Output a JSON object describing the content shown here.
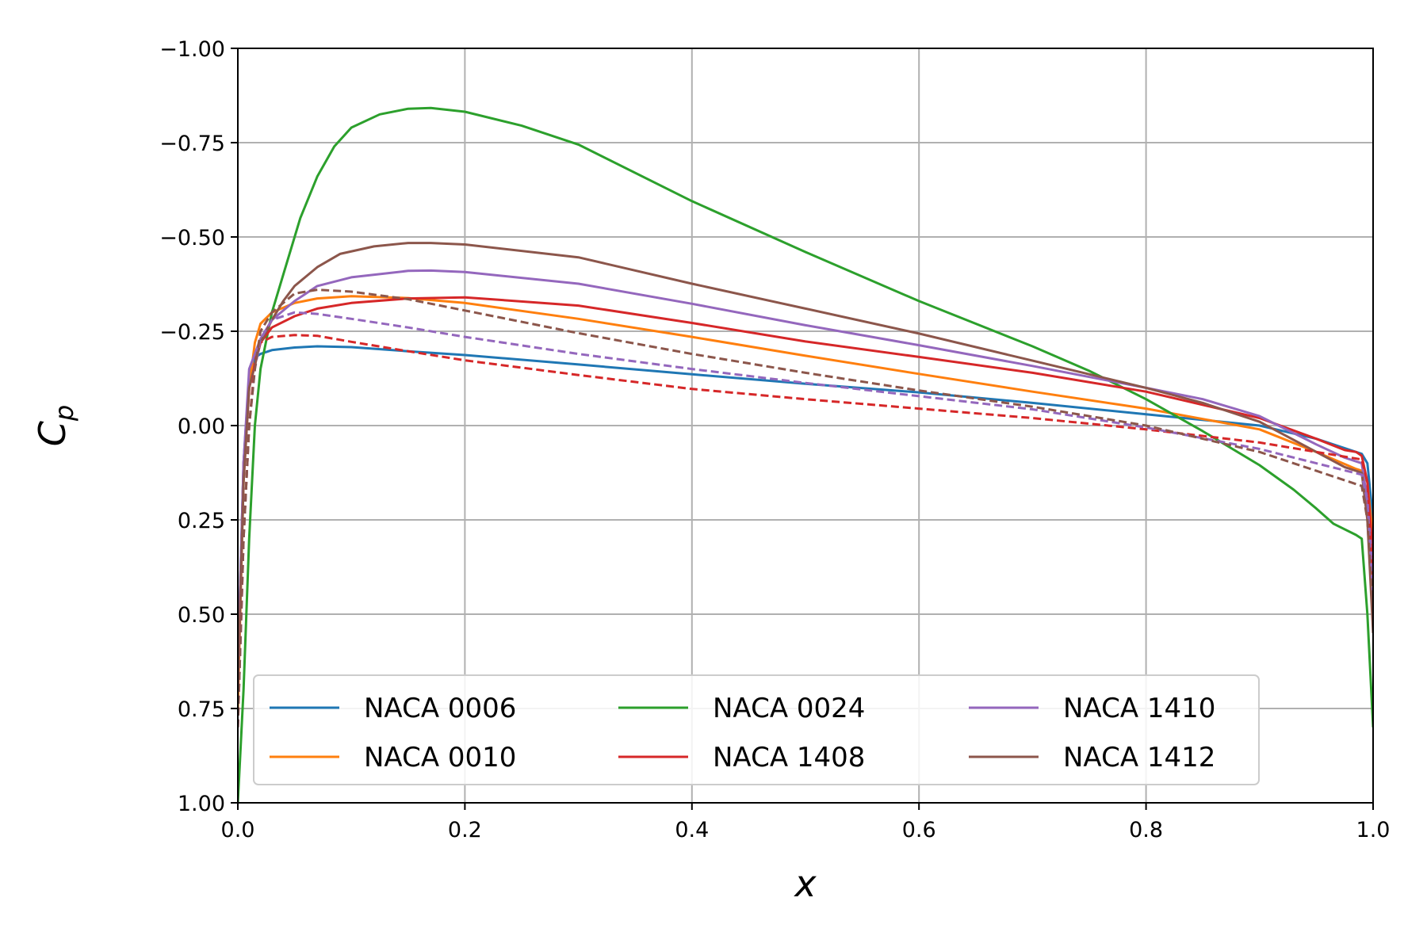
{
  "chart_data": {
    "type": "line",
    "xlabel": "x",
    "ylabel": "C",
    "ylabel_sub": "p",
    "xlim": [
      0.0,
      1.0
    ],
    "ylim": [
      1.0,
      -1.0
    ],
    "y_inverted": true,
    "grid": true,
    "legend_position": "lower-center",
    "legend_columns": 3,
    "xticks": [
      "0.0",
      "0.2",
      "0.4",
      "0.6",
      "0.8",
      "1.0"
    ],
    "yticks": [
      "−1.00",
      "−0.75",
      "−0.50",
      "−0.25",
      "0.00",
      "0.25",
      "0.50",
      "0.75",
      "1.00"
    ],
    "series": [
      {
        "name": "NACA 0006",
        "color": "#1f77b4",
        "style": "solid",
        "points": [
          [
            0.0,
            0.65
          ],
          [
            0.005,
            0.1
          ],
          [
            0.01,
            -0.13
          ],
          [
            0.015,
            -0.18
          ],
          [
            0.02,
            -0.19
          ],
          [
            0.03,
            -0.2
          ],
          [
            0.05,
            -0.207
          ],
          [
            0.07,
            -0.21
          ],
          [
            0.1,
            -0.208
          ],
          [
            0.15,
            -0.197
          ],
          [
            0.2,
            -0.187
          ],
          [
            0.3,
            -0.162
          ],
          [
            0.4,
            -0.136
          ],
          [
            0.5,
            -0.111
          ],
          [
            0.6,
            -0.088
          ],
          [
            0.7,
            -0.06
          ],
          [
            0.8,
            -0.03
          ],
          [
            0.9,
            0.0
          ],
          [
            0.95,
            0.035
          ],
          [
            0.985,
            0.07
          ],
          [
            0.99,
            0.075
          ],
          [
            0.995,
            0.1
          ],
          [
            1.0,
            0.25
          ]
        ]
      },
      {
        "name": "NACA 0010",
        "color": "#ff7f0e",
        "style": "solid",
        "points": [
          [
            0.0,
            0.75
          ],
          [
            0.005,
            0.15
          ],
          [
            0.01,
            -0.1
          ],
          [
            0.015,
            -0.22
          ],
          [
            0.02,
            -0.27
          ],
          [
            0.03,
            -0.3
          ],
          [
            0.05,
            -0.325
          ],
          [
            0.07,
            -0.337
          ],
          [
            0.1,
            -0.343
          ],
          [
            0.15,
            -0.338
          ],
          [
            0.2,
            -0.325
          ],
          [
            0.3,
            -0.283
          ],
          [
            0.4,
            -0.235
          ],
          [
            0.5,
            -0.185
          ],
          [
            0.6,
            -0.137
          ],
          [
            0.7,
            -0.09
          ],
          [
            0.8,
            -0.045
          ],
          [
            0.9,
            0.01
          ],
          [
            0.95,
            0.07
          ],
          [
            0.985,
            0.115
          ],
          [
            0.99,
            0.12
          ],
          [
            0.995,
            0.15
          ],
          [
            1.0,
            0.3
          ]
        ]
      },
      {
        "name": "NACA 0024",
        "color": "#2ca02c",
        "style": "solid",
        "points": [
          [
            0.0,
            1.0
          ],
          [
            0.005,
            0.7
          ],
          [
            0.01,
            0.3
          ],
          [
            0.015,
            0.0
          ],
          [
            0.02,
            -0.15
          ],
          [
            0.03,
            -0.3
          ],
          [
            0.04,
            -0.4
          ],
          [
            0.055,
            -0.55
          ],
          [
            0.07,
            -0.66
          ],
          [
            0.085,
            -0.74
          ],
          [
            0.1,
            -0.79
          ],
          [
            0.125,
            -0.825
          ],
          [
            0.15,
            -0.84
          ],
          [
            0.17,
            -0.842
          ],
          [
            0.2,
            -0.832
          ],
          [
            0.25,
            -0.795
          ],
          [
            0.3,
            -0.745
          ],
          [
            0.4,
            -0.595
          ],
          [
            0.5,
            -0.46
          ],
          [
            0.6,
            -0.33
          ],
          [
            0.7,
            -0.21
          ],
          [
            0.75,
            -0.145
          ],
          [
            0.8,
            -0.07
          ],
          [
            0.85,
            0.015
          ],
          [
            0.9,
            0.105
          ],
          [
            0.93,
            0.17
          ],
          [
            0.95,
            0.22
          ],
          [
            0.965,
            0.26
          ],
          [
            0.985,
            0.29
          ],
          [
            0.99,
            0.3
          ],
          [
            0.995,
            0.5
          ],
          [
            1.0,
            0.8
          ]
        ]
      },
      {
        "name": "NACA 1408",
        "color": "#d62728",
        "style": "solid",
        "points": [
          [
            0.0,
            0.7
          ],
          [
            0.005,
            0.1
          ],
          [
            0.01,
            -0.1
          ],
          [
            0.02,
            -0.22
          ],
          [
            0.03,
            -0.26
          ],
          [
            0.05,
            -0.29
          ],
          [
            0.07,
            -0.31
          ],
          [
            0.1,
            -0.325
          ],
          [
            0.15,
            -0.337
          ],
          [
            0.2,
            -0.34
          ],
          [
            0.3,
            -0.318
          ],
          [
            0.4,
            -0.272
          ],
          [
            0.5,
            -0.223
          ],
          [
            0.6,
            -0.182
          ],
          [
            0.7,
            -0.14
          ],
          [
            0.8,
            -0.09
          ],
          [
            0.9,
            -0.02
          ],
          [
            0.95,
            0.035
          ],
          [
            0.975,
            0.065
          ],
          [
            0.985,
            0.07
          ],
          [
            0.99,
            0.08
          ],
          [
            0.995,
            0.15
          ],
          [
            1.0,
            0.35
          ]
        ]
      },
      {
        "name": "NACA 1410",
        "color": "#9467bd",
        "style": "solid",
        "points": [
          [
            0.0,
            0.65
          ],
          [
            0.005,
            0.1
          ],
          [
            0.01,
            -0.15
          ],
          [
            0.02,
            -0.23
          ],
          [
            0.03,
            -0.28
          ],
          [
            0.05,
            -0.33
          ],
          [
            0.07,
            -0.37
          ],
          [
            0.1,
            -0.393
          ],
          [
            0.15,
            -0.41
          ],
          [
            0.17,
            -0.411
          ],
          [
            0.2,
            -0.407
          ],
          [
            0.3,
            -0.376
          ],
          [
            0.4,
            -0.323
          ],
          [
            0.5,
            -0.266
          ],
          [
            0.6,
            -0.213
          ],
          [
            0.7,
            -0.158
          ],
          [
            0.8,
            -0.1
          ],
          [
            0.85,
            -0.07
          ],
          [
            0.9,
            -0.025
          ],
          [
            0.95,
            0.05
          ],
          [
            0.975,
            0.085
          ],
          [
            0.99,
            0.1
          ],
          [
            0.995,
            0.2
          ],
          [
            1.0,
            0.4
          ]
        ]
      },
      {
        "name": "NACA 1412",
        "color": "#8c564b",
        "style": "solid",
        "points": [
          [
            0.0,
            0.7
          ],
          [
            0.005,
            0.15
          ],
          [
            0.01,
            -0.1
          ],
          [
            0.02,
            -0.22
          ],
          [
            0.03,
            -0.28
          ],
          [
            0.04,
            -0.33
          ],
          [
            0.05,
            -0.37
          ],
          [
            0.07,
            -0.42
          ],
          [
            0.09,
            -0.455
          ],
          [
            0.12,
            -0.475
          ],
          [
            0.15,
            -0.484
          ],
          [
            0.17,
            -0.484
          ],
          [
            0.2,
            -0.48
          ],
          [
            0.3,
            -0.446
          ],
          [
            0.4,
            -0.376
          ],
          [
            0.5,
            -0.31
          ],
          [
            0.6,
            -0.244
          ],
          [
            0.7,
            -0.172
          ],
          [
            0.8,
            -0.1
          ],
          [
            0.85,
            -0.06
          ],
          [
            0.9,
            -0.01
          ],
          [
            0.95,
            0.07
          ],
          [
            0.975,
            0.11
          ],
          [
            0.99,
            0.125
          ],
          [
            0.995,
            0.25
          ],
          [
            1.0,
            0.55
          ]
        ]
      },
      {
        "name": "",
        "color": "#d62728",
        "style": "dashed",
        "points": [
          [
            0.0,
            0.8
          ],
          [
            0.005,
            0.3
          ],
          [
            0.01,
            0.0
          ],
          [
            0.015,
            -0.17
          ],
          [
            0.02,
            -0.22
          ],
          [
            0.03,
            -0.235
          ],
          [
            0.05,
            -0.24
          ],
          [
            0.07,
            -0.238
          ],
          [
            0.1,
            -0.222
          ],
          [
            0.15,
            -0.197
          ],
          [
            0.2,
            -0.173
          ],
          [
            0.3,
            -0.134
          ],
          [
            0.4,
            -0.097
          ],
          [
            0.5,
            -0.07
          ],
          [
            0.6,
            -0.045
          ],
          [
            0.7,
            -0.02
          ],
          [
            0.8,
            0.01
          ],
          [
            0.9,
            0.045
          ],
          [
            0.95,
            0.07
          ],
          [
            0.99,
            0.09
          ],
          [
            0.995,
            0.15
          ],
          [
            1.0,
            0.4
          ]
        ]
      },
      {
        "name": "",
        "color": "#9467bd",
        "style": "dashed",
        "points": [
          [
            0.0,
            0.8
          ],
          [
            0.005,
            0.3
          ],
          [
            0.01,
            0.0
          ],
          [
            0.015,
            -0.15
          ],
          [
            0.02,
            -0.23
          ],
          [
            0.03,
            -0.28
          ],
          [
            0.05,
            -0.3
          ],
          [
            0.07,
            -0.296
          ],
          [
            0.1,
            -0.283
          ],
          [
            0.15,
            -0.26
          ],
          [
            0.2,
            -0.235
          ],
          [
            0.3,
            -0.19
          ],
          [
            0.4,
            -0.15
          ],
          [
            0.5,
            -0.113
          ],
          [
            0.6,
            -0.078
          ],
          [
            0.7,
            -0.043
          ],
          [
            0.8,
            0.005
          ],
          [
            0.9,
            0.062
          ],
          [
            0.95,
            0.1
          ],
          [
            0.99,
            0.13
          ],
          [
            0.995,
            0.2
          ],
          [
            1.0,
            0.45
          ]
        ]
      },
      {
        "name": "",
        "color": "#8c564b",
        "style": "dashed",
        "points": [
          [
            0.0,
            0.8
          ],
          [
            0.005,
            0.3
          ],
          [
            0.01,
            0.0
          ],
          [
            0.015,
            -0.15
          ],
          [
            0.02,
            -0.25
          ],
          [
            0.03,
            -0.3
          ],
          [
            0.05,
            -0.35
          ],
          [
            0.07,
            -0.36
          ],
          [
            0.1,
            -0.355
          ],
          [
            0.15,
            -0.335
          ],
          [
            0.2,
            -0.305
          ],
          [
            0.3,
            -0.245
          ],
          [
            0.4,
            -0.19
          ],
          [
            0.5,
            -0.14
          ],
          [
            0.6,
            -0.093
          ],
          [
            0.7,
            -0.05
          ],
          [
            0.8,
            0.0
          ],
          [
            0.9,
            0.07
          ],
          [
            0.95,
            0.12
          ],
          [
            0.99,
            0.16
          ],
          [
            0.995,
            0.25
          ],
          [
            1.0,
            0.5
          ]
        ]
      }
    ]
  }
}
